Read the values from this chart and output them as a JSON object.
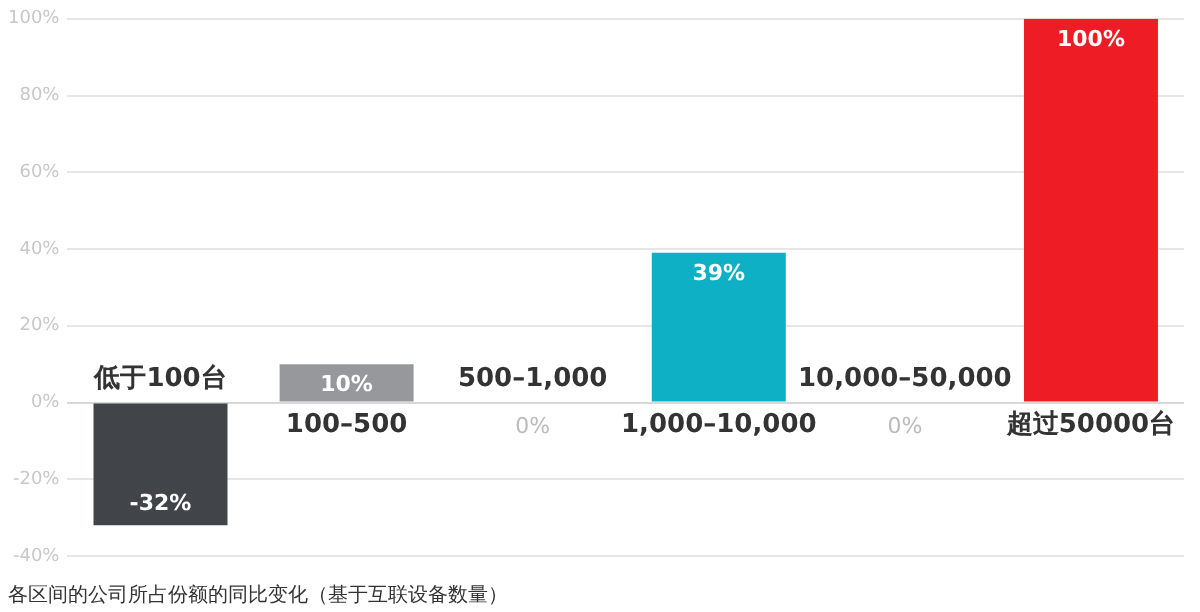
{
  "chart_data": {
    "type": "bar",
    "categories": [
      "低于100台",
      "100–500",
      "500–1,000",
      "1,000–10,000",
      "10,000–50,000",
      "超过50000台"
    ],
    "values": [
      -32,
      10,
      0,
      39,
      0,
      100
    ],
    "colors": [
      "#414549",
      "#97989c",
      "#cccccc",
      "#0db0c4",
      "#cccccc",
      "#ee1c25"
    ],
    "value_labels": [
      "-32%",
      "10%",
      "0%",
      "39%",
      "0%",
      "100%"
    ],
    "ylim": [
      -40,
      100
    ],
    "yticks": [
      {
        "value": -40,
        "label": "-40%"
      },
      {
        "value": -20,
        "label": "-20%"
      },
      {
        "value": 0,
        "label": "0%"
      },
      {
        "value": 20,
        "label": "20%"
      },
      {
        "value": 40,
        "label": "40%"
      },
      {
        "value": 60,
        "label": "60%"
      },
      {
        "value": 80,
        "label": "80%"
      },
      {
        "value": 100,
        "label": "100%"
      }
    ],
    "grid": "y",
    "legend": false,
    "annotations": [
      "各区间的公司所占份额的同比变化（基于互联设备数量）"
    ]
  }
}
